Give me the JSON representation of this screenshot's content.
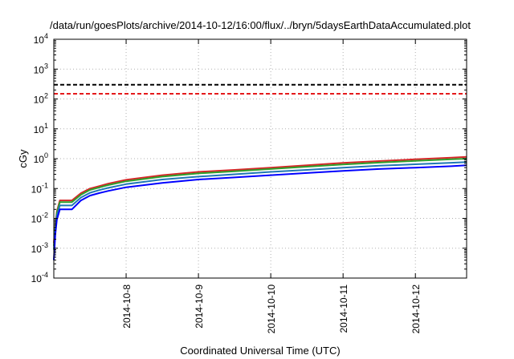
{
  "chart_data": {
    "type": "line",
    "title": "/data/run/goesPlots/archive/2014-10-12/16:00/flux/../bryn/5daysEarthDataAccumulated.plot",
    "xlabel": "Coordinated Universal Time (UTC)",
    "ylabel": "cGy",
    "yscale": "log",
    "ylim": [
      0.0001,
      10000
    ],
    "y_ticks": [
      {
        "base": "10",
        "exp": "-4",
        "value": 0.0001
      },
      {
        "base": "10",
        "exp": "-3",
        "value": 0.001
      },
      {
        "base": "10",
        "exp": "-2",
        "value": 0.01
      },
      {
        "base": "10",
        "exp": "-1",
        "value": 0.1
      },
      {
        "base": "10",
        "exp": "0",
        "value": 1
      },
      {
        "base": "10",
        "exp": "1",
        "value": 10
      },
      {
        "base": "10",
        "exp": "2",
        "value": 100
      },
      {
        "base": "10",
        "exp": "3",
        "value": 1000
      },
      {
        "base": "10",
        "exp": "4",
        "value": 10000
      }
    ],
    "xlim": [
      "2014-10-07T00:00",
      "2014-10-12T17:00"
    ],
    "x_ticks": [
      "2014-10-8",
      "2014-10-9",
      "2014-10-10",
      "2014-10-11",
      "2014-10-12"
    ],
    "x_tick_dates": [
      "2014-10-08T00:00",
      "2014-10-09T00:00",
      "2014-10-10T00:00",
      "2014-10-11T00:00",
      "2014-10-12T00:00"
    ],
    "grid": true,
    "thresholds": [
      {
        "value": 300,
        "color": "#000000",
        "style": "dashed"
      },
      {
        "value": 150,
        "color": "#e41a1c",
        "style": "dashed"
      }
    ],
    "x": [
      "2014-10-07T00:00",
      "2014-10-07T00:30",
      "2014-10-07T01:00",
      "2014-10-07T02:00",
      "2014-10-07T04:00",
      "2014-10-07T06:00",
      "2014-10-07T09:00",
      "2014-10-07T12:00",
      "2014-10-07T15:00",
      "2014-10-07T18:00",
      "2014-10-08T00:00",
      "2014-10-08T12:00",
      "2014-10-09T00:00",
      "2014-10-09T12:00",
      "2014-10-10T00:00",
      "2014-10-10T12:00",
      "2014-10-11T00:00",
      "2014-10-11T12:00",
      "2014-10-12T00:00",
      "2014-10-12T12:00",
      "2014-10-12T17:00"
    ],
    "series": [
      {
        "color": "#d62728",
        "values": [
          0.0015,
          0.006,
          0.017,
          0.04,
          0.04,
          0.04,
          0.07,
          0.1,
          0.12,
          0.145,
          0.195,
          0.28,
          0.36,
          0.42,
          0.5,
          0.6,
          0.72,
          0.83,
          0.95,
          1.08,
          1.15
        ]
      },
      {
        "color": "#2ca02c",
        "values": [
          0.0012,
          0.005,
          0.015,
          0.035,
          0.035,
          0.035,
          0.062,
          0.09,
          0.108,
          0.13,
          0.175,
          0.25,
          0.32,
          0.38,
          0.45,
          0.54,
          0.64,
          0.74,
          0.84,
          0.95,
          1.0
        ]
      },
      {
        "color": "#1f77b4",
        "values": [
          0.0009,
          0.004,
          0.012,
          0.027,
          0.027,
          0.027,
          0.05,
          0.072,
          0.088,
          0.105,
          0.14,
          0.2,
          0.25,
          0.3,
          0.36,
          0.42,
          0.5,
          0.58,
          0.65,
          0.73,
          0.77
        ]
      },
      {
        "color": "#0000ff",
        "values": [
          0.0004,
          0.003,
          0.009,
          0.02,
          0.02,
          0.02,
          0.04,
          0.058,
          0.07,
          0.083,
          0.11,
          0.155,
          0.2,
          0.235,
          0.28,
          0.33,
          0.39,
          0.45,
          0.5,
          0.56,
          0.6
        ]
      }
    ]
  }
}
